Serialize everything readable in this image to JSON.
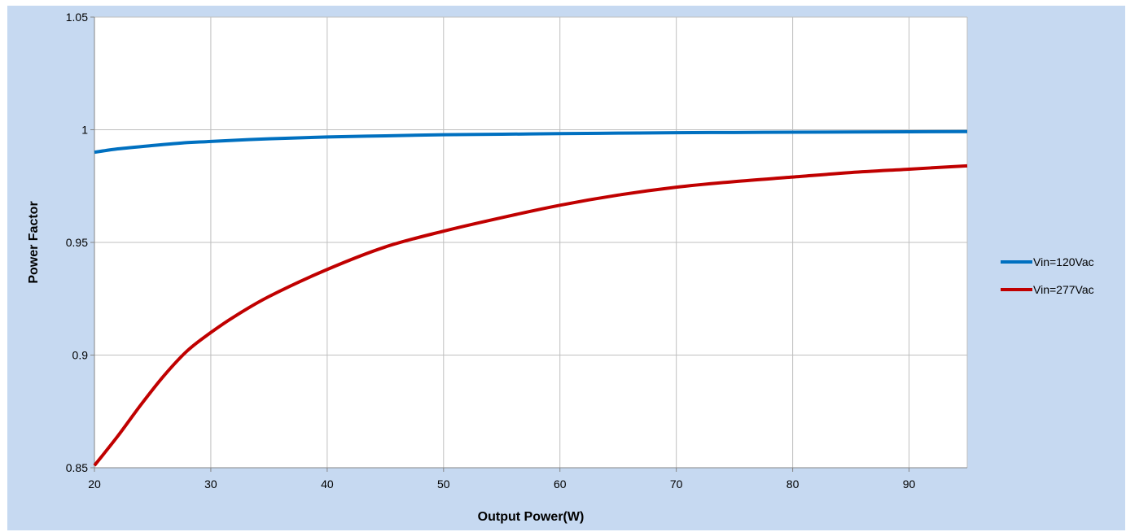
{
  "chart_data": {
    "type": "line",
    "title": "",
    "xlabel": "Output Power(W)",
    "ylabel": "Power Factor",
    "xlim": [
      20,
      95
    ],
    "ylim": [
      0.85,
      1.05
    ],
    "x_ticks": [
      20,
      30,
      40,
      50,
      60,
      70,
      80,
      90
    ],
    "y_ticks": [
      0.85,
      0.9,
      0.95,
      1,
      1.05
    ],
    "y_tick_labels": [
      "0.85",
      "0.9",
      "0.95",
      "1",
      "1.05"
    ],
    "grid": true,
    "legend_position": "right",
    "plot_background": "#ffffff",
    "chart_background": "#c6d9f1",
    "series": [
      {
        "name": "Vin=120Vac",
        "color": "#0070c0",
        "x": [
          20,
          22,
          25,
          28,
          30,
          35,
          40,
          45,
          50,
          55,
          60,
          65,
          70,
          75,
          80,
          85,
          90,
          95
        ],
        "y": [
          0.99,
          0.9915,
          0.993,
          0.9943,
          0.9948,
          0.996,
          0.9968,
          0.9973,
          0.9978,
          0.998,
          0.9983,
          0.9985,
          0.9987,
          0.9988,
          0.9989,
          0.999,
          0.9991,
          0.9992
        ]
      },
      {
        "name": "Vin=277Vac",
        "color": "#c00000",
        "x": [
          20,
          22,
          24,
          26,
          28,
          30,
          32,
          35,
          40,
          45,
          50,
          55,
          60,
          65,
          70,
          75,
          80,
          85,
          90,
          95
        ],
        "y": [
          0.851,
          0.864,
          0.878,
          0.891,
          0.902,
          0.91,
          0.917,
          0.926,
          0.938,
          0.948,
          0.955,
          0.961,
          0.9665,
          0.971,
          0.9745,
          0.977,
          0.979,
          0.981,
          0.9825,
          0.984
        ]
      }
    ]
  }
}
